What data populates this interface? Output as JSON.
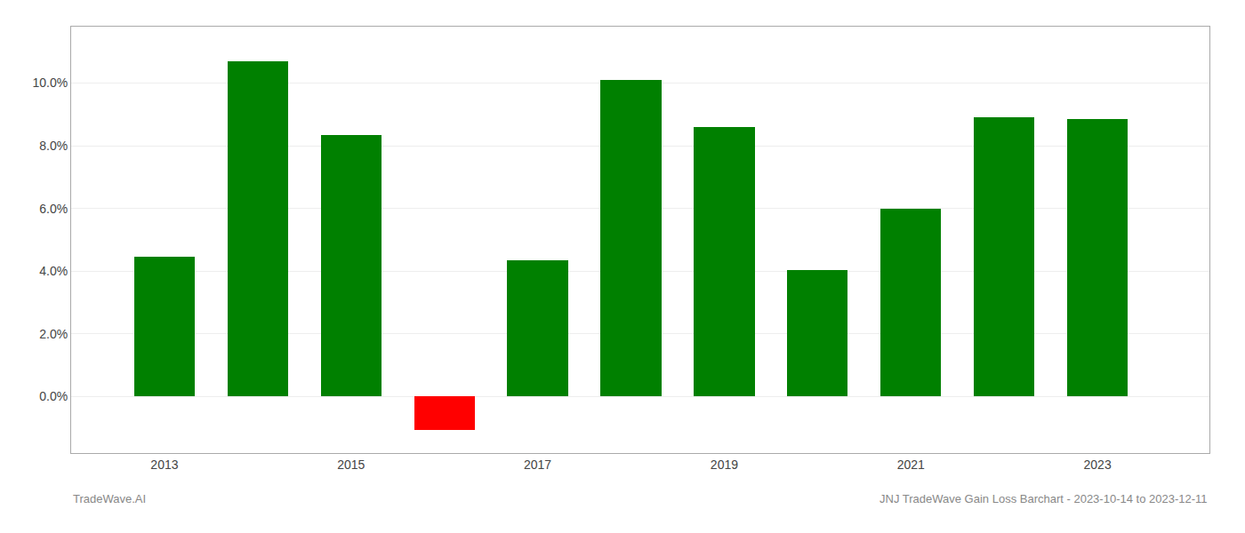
{
  "chart_data": {
    "type": "bar",
    "x": [
      2013,
      2014,
      2015,
      2016,
      2017,
      2018,
      2019,
      2020,
      2021,
      2022,
      2023
    ],
    "values": [
      4.45,
      10.7,
      8.35,
      -1.05,
      4.35,
      10.1,
      8.6,
      4.05,
      6.0,
      8.9,
      8.85
    ],
    "colors": [
      "#008000",
      "#008000",
      "#008000",
      "#ff0000",
      "#008000",
      "#008000",
      "#008000",
      "#008000",
      "#008000",
      "#008000",
      "#008000"
    ],
    "xlim": [
      2012.0,
      2024.2
    ],
    "xticks": [
      2013,
      2015,
      2017,
      2019,
      2021,
      2023
    ],
    "ylim": [
      -1.8,
      11.8
    ],
    "yticks": [
      {
        "value": 0.0,
        "label": "0.0%"
      },
      {
        "value": 2.0,
        "label": "2.0%"
      },
      {
        "value": 4.0,
        "label": "4.0%"
      },
      {
        "value": 6.0,
        "label": "6.0%"
      },
      {
        "value": 8.0,
        "label": "8.0%"
      },
      {
        "value": 10.0,
        "label": "10.0%"
      }
    ],
    "grid": true,
    "annotations": [
      "TradeWave.AI",
      "JNJ TradeWave Gain Loss Barchart - 2023-10-14 to 2023-12-11"
    ]
  }
}
